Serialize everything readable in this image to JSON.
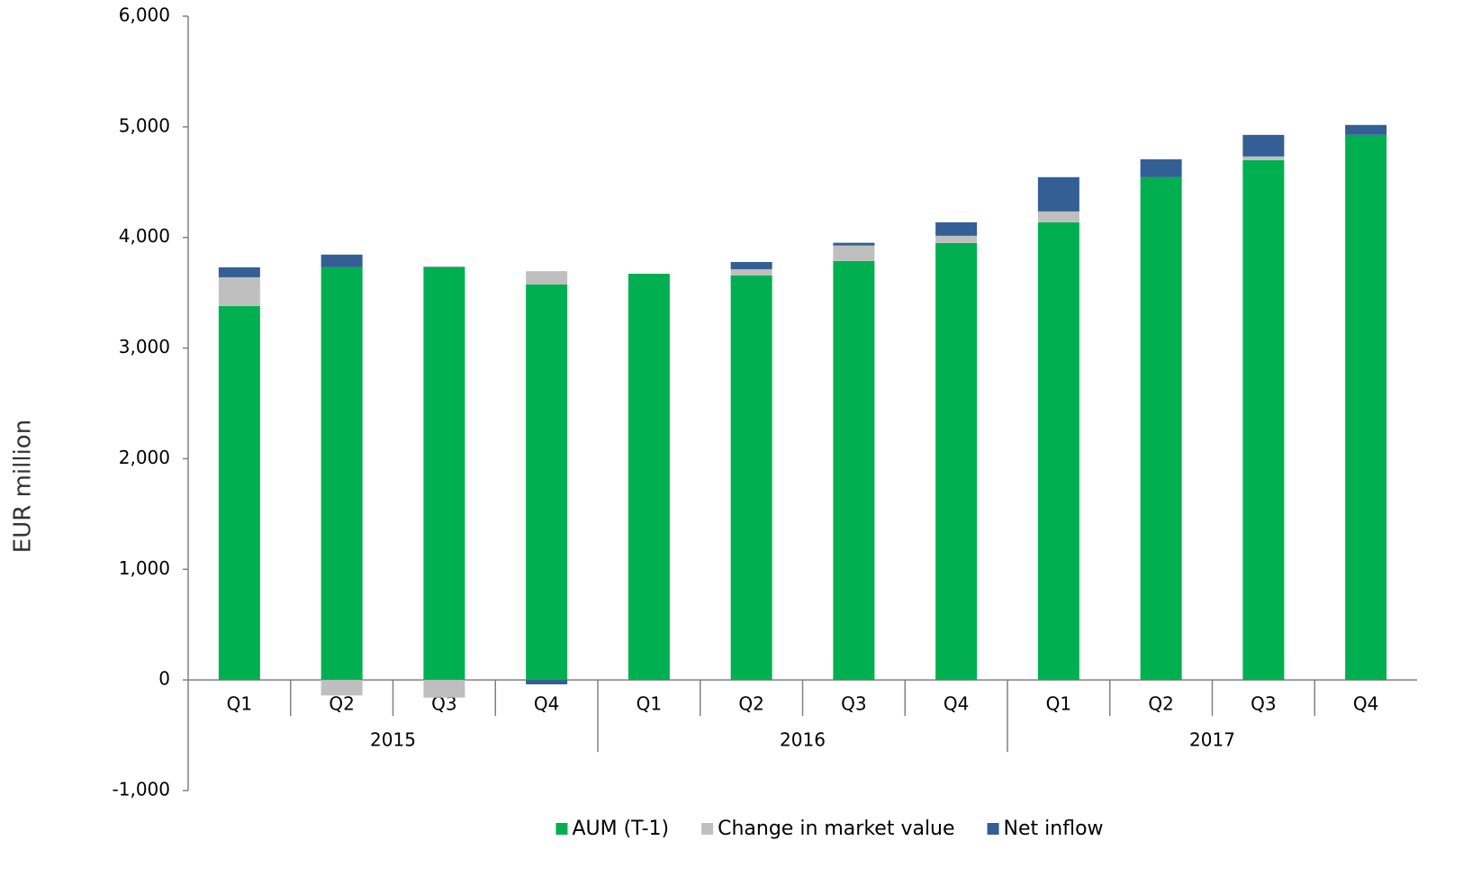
{
  "chart_data": {
    "type": "stacked_bar",
    "y_label": "EUR million",
    "groups": [
      {
        "name": "2015",
        "categories": [
          "Q1",
          "Q2",
          "Q3",
          "Q4"
        ]
      },
      {
        "name": "2016",
        "categories": [
          "Q1",
          "Q2",
          "Q3",
          "Q4"
        ]
      },
      {
        "name": "2017",
        "categories": [
          "Q1",
          "Q2",
          "Q3",
          "Q4"
        ]
      }
    ],
    "series": [
      {
        "name": "AUM (T-1)",
        "color": "#00b050",
        "values": [
          3380,
          3730,
          3730,
          3575,
          3672,
          3656,
          3787,
          3950,
          4137,
          4544,
          4699,
          4927
        ]
      },
      {
        "name": "Change in market value",
        "color": "#bfbfbf",
        "values": [
          260,
          -140,
          -160,
          120,
          0,
          57,
          140,
          65,
          98,
          0,
          33,
          0
        ]
      },
      {
        "name": "Net inflow",
        "color": "#335f95",
        "values": [
          90,
          115,
          5,
          -40,
          0,
          65,
          25,
          122,
          310,
          163,
          195,
          90
        ]
      }
    ],
    "ylim": [
      -1000,
      6000
    ],
    "yticks": [
      {
        "value": -1000,
        "label": "-1,000"
      },
      0,
      {
        "value": 1000,
        "label": "1,000"
      },
      {
        "value": 2000,
        "label": "2,000"
      },
      {
        "value": 3000,
        "label": "3,000"
      },
      {
        "value": 4000,
        "label": "4,000"
      },
      {
        "value": 5000,
        "label": "5,000"
      },
      {
        "value": 6000,
        "label": "6,000"
      }
    ],
    "legend": "bottom"
  }
}
